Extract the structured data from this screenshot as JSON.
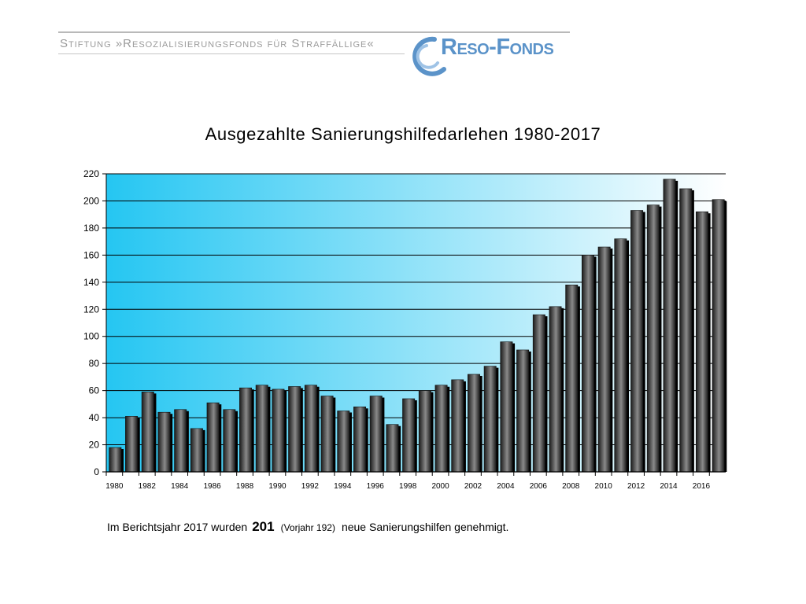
{
  "header": {
    "foundation": "Stiftung »Resozialisierungsfonds für Straffällige«",
    "logo_text": "Reso-Fonds"
  },
  "colors": {
    "gradient_start": "#25c6f2",
    "gradient_end": "#ffffff",
    "bar_dark": "#1a1a1a",
    "bar_light": "#8a8a8a",
    "logo": "#5b93c9"
  },
  "chart_data": {
    "type": "bar",
    "title": "Ausgezahlte Sanierungshilfedarlehen 1980-2017",
    "xlabel": "",
    "ylabel": "",
    "ylim": [
      0,
      220
    ],
    "yticks": [
      0,
      20,
      40,
      60,
      80,
      100,
      120,
      140,
      160,
      180,
      200,
      220
    ],
    "grid": true,
    "categories": [
      "1980",
      "1981",
      "1982",
      "1983",
      "1984",
      "1985",
      "1986",
      "1987",
      "1988",
      "1989",
      "1990",
      "1991",
      "1992",
      "1993",
      "1994",
      "1995",
      "1996",
      "1997",
      "1998",
      "1999",
      "2000",
      "2001",
      "2002",
      "2003",
      "2004",
      "2005",
      "2006",
      "2007",
      "2008",
      "2009",
      "2010",
      "2011",
      "2012",
      "2013",
      "2014",
      "2015",
      "2016",
      "2017"
    ],
    "x_tick_labels": [
      "1980",
      "",
      "1982",
      "",
      "1984",
      "",
      "1986",
      "",
      "1988",
      "",
      "1990",
      "",
      "1992",
      "",
      "1994",
      "",
      "1996",
      "",
      "1998",
      "",
      "2000",
      "",
      "2002",
      "",
      "2004",
      "",
      "2006",
      "",
      "2008",
      "",
      "2010",
      "",
      "2012",
      "",
      "2014",
      "",
      "2016",
      ""
    ],
    "values": [
      18,
      41,
      59,
      44,
      46,
      32,
      51,
      46,
      62,
      64,
      61,
      63,
      64,
      56,
      45,
      48,
      56,
      35,
      54,
      60,
      64,
      68,
      72,
      78,
      96,
      90,
      116,
      122,
      138,
      160,
      166,
      172,
      193,
      197,
      216,
      209,
      192,
      201
    ]
  },
  "footnote": {
    "part1": "Im Berichtsjahr 2017 wurden",
    "count": "201",
    "previous": "(Vorjahr  192)",
    "part2": "neue Sanierungshilfen genehmigt."
  }
}
